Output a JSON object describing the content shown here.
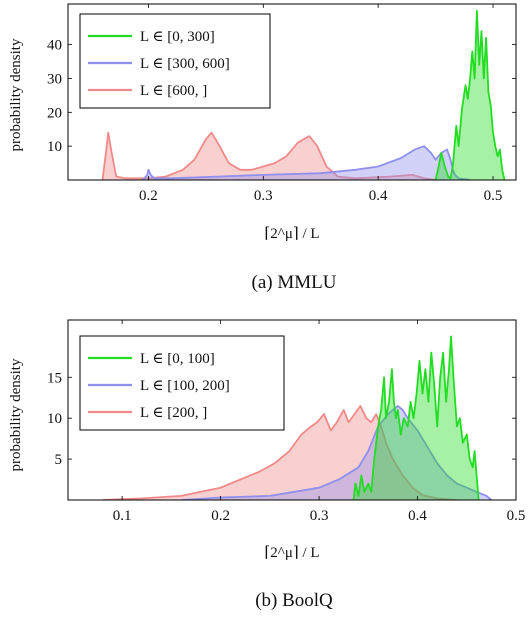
{
  "colors": {
    "green": "#22dd22",
    "blue": "#8f8fee",
    "red": "#f08a8a"
  },
  "chart_data": [
    {
      "type": "area",
      "caption": "(a) MMLU",
      "xlabel": "⌈2^μ⌉ / L",
      "ylabel": "probability density",
      "xlim": [
        0.13,
        0.52
      ],
      "ylim": [
        0,
        52
      ],
      "xticks": [
        0.2,
        0.3,
        0.4,
        0.5
      ],
      "xtick_labels": [
        "0.2",
        "0.3",
        "0.4",
        "0.5"
      ],
      "yticks": [
        10,
        20,
        30,
        40
      ],
      "ytick_labels": [
        "10",
        "20",
        "30",
        "40"
      ],
      "legend_position": "top-left",
      "series": [
        {
          "name": "L ∈ [0, 300]",
          "color": "green",
          "points": [
            [
              0.45,
              0
            ],
            [
              0.452,
              3
            ],
            [
              0.455,
              8
            ],
            [
              0.458,
              4
            ],
            [
              0.461,
              1
            ],
            [
              0.463,
              0.5
            ],
            [
              0.465,
              4
            ],
            [
              0.468,
              16
            ],
            [
              0.47,
              10
            ],
            [
              0.473,
              21
            ],
            [
              0.476,
              28
            ],
            [
              0.478,
              24
            ],
            [
              0.48,
              30
            ],
            [
              0.482,
              38
            ],
            [
              0.484,
              30
            ],
            [
              0.486,
              50
            ],
            [
              0.488,
              34
            ],
            [
              0.49,
              44
            ],
            [
              0.492,
              30
            ],
            [
              0.494,
              42
            ],
            [
              0.496,
              26
            ],
            [
              0.498,
              22
            ],
            [
              0.5,
              14
            ],
            [
              0.502,
              10
            ],
            [
              0.504,
              7
            ],
            [
              0.506,
              9
            ],
            [
              0.508,
              3
            ],
            [
              0.51,
              0
            ]
          ]
        },
        {
          "name": "L ∈ [300, 600]",
          "color": "blue",
          "points": [
            [
              0.195,
              0
            ],
            [
              0.199,
              1.5
            ],
            [
              0.2,
              3
            ],
            [
              0.202,
              1.5
            ],
            [
              0.205,
              0.5
            ],
            [
              0.22,
              0.5
            ],
            [
              0.26,
              1
            ],
            [
              0.3,
              1.5
            ],
            [
              0.35,
              2
            ],
            [
              0.38,
              3
            ],
            [
              0.4,
              4
            ],
            [
              0.42,
              6.5
            ],
            [
              0.432,
              9
            ],
            [
              0.44,
              10
            ],
            [
              0.446,
              8
            ],
            [
              0.45,
              6
            ],
            [
              0.455,
              8
            ],
            [
              0.46,
              9
            ],
            [
              0.463,
              6
            ],
            [
              0.465,
              3
            ],
            [
              0.467,
              1.5
            ],
            [
              0.47,
              0.5
            ],
            [
              0.48,
              0
            ]
          ]
        },
        {
          "name": "L ∈ [600, ]",
          "color": "red",
          "points": [
            [
              0.16,
              0
            ],
            [
              0.163,
              8
            ],
            [
              0.165,
              14
            ],
            [
              0.168,
              8
            ],
            [
              0.172,
              1
            ],
            [
              0.18,
              0.5
            ],
            [
              0.2,
              0.5
            ],
            [
              0.215,
              1
            ],
            [
              0.23,
              3
            ],
            [
              0.24,
              6
            ],
            [
              0.25,
              12
            ],
            [
              0.255,
              14
            ],
            [
              0.262,
              10
            ],
            [
              0.27,
              5
            ],
            [
              0.28,
              3
            ],
            [
              0.29,
              3
            ],
            [
              0.3,
              4
            ],
            [
              0.31,
              5
            ],
            [
              0.32,
              7
            ],
            [
              0.33,
              11
            ],
            [
              0.34,
              13
            ],
            [
              0.347,
              10
            ],
            [
              0.355,
              4
            ],
            [
              0.365,
              1
            ],
            [
              0.38,
              0.5
            ],
            [
              0.41,
              1
            ],
            [
              0.43,
              1.5
            ],
            [
              0.44,
              0.5
            ],
            [
              0.45,
              0
            ]
          ]
        }
      ]
    },
    {
      "type": "area",
      "caption": "(b) BoolQ",
      "xlabel": "⌈2^μ⌉ / L",
      "ylabel": "probability density",
      "xlim": [
        0.045,
        0.5
      ],
      "ylim": [
        0,
        22
      ],
      "xticks": [
        0.1,
        0.2,
        0.3,
        0.4,
        0.5
      ],
      "xtick_labels": [
        "0.1",
        "0.2",
        "0.3",
        "0.4",
        "0.5"
      ],
      "yticks": [
        5,
        10,
        15
      ],
      "ytick_labels": [
        "5",
        "10",
        "15"
      ],
      "legend_position": "top-left",
      "series": [
        {
          "name": "L ∈ [0, 100]",
          "color": "green",
          "points": [
            [
              0.335,
              0
            ],
            [
              0.337,
              2
            ],
            [
              0.34,
              0.5
            ],
            [
              0.343,
              3
            ],
            [
              0.346,
              1
            ],
            [
              0.35,
              2
            ],
            [
              0.353,
              1
            ],
            [
              0.356,
              5
            ],
            [
              0.36,
              9
            ],
            [
              0.363,
              11
            ],
            [
              0.366,
              15
            ],
            [
              0.368,
              10
            ],
            [
              0.371,
              12
            ],
            [
              0.374,
              16
            ],
            [
              0.376,
              12
            ],
            [
              0.378,
              10
            ],
            [
              0.38,
              11
            ],
            [
              0.383,
              8
            ],
            [
              0.386,
              10
            ],
            [
              0.39,
              9
            ],
            [
              0.393,
              12
            ],
            [
              0.396,
              10
            ],
            [
              0.399,
              13
            ],
            [
              0.402,
              17
            ],
            [
              0.405,
              13
            ],
            [
              0.408,
              16
            ],
            [
              0.411,
              12
            ],
            [
              0.414,
              18
            ],
            [
              0.417,
              14
            ],
            [
              0.42,
              9
            ],
            [
              0.423,
              15
            ],
            [
              0.426,
              18
            ],
            [
              0.429,
              12
            ],
            [
              0.432,
              16
            ],
            [
              0.434,
              20
            ],
            [
              0.437,
              14
            ],
            [
              0.44,
              9
            ],
            [
              0.443,
              10
            ],
            [
              0.446,
              7
            ],
            [
              0.45,
              8
            ],
            [
              0.453,
              5
            ],
            [
              0.456,
              4
            ],
            [
              0.458,
              6
            ],
            [
              0.46,
              3
            ],
            [
              0.462,
              0
            ]
          ]
        },
        {
          "name": "L ∈ [100, 200]",
          "color": "blue",
          "points": [
            [
              0.16,
              0
            ],
            [
              0.2,
              0.3
            ],
            [
              0.25,
              0.5
            ],
            [
              0.3,
              1.5
            ],
            [
              0.32,
              2.5
            ],
            [
              0.34,
              4
            ],
            [
              0.35,
              6
            ],
            [
              0.36,
              9
            ],
            [
              0.37,
              10.5
            ],
            [
              0.375,
              11
            ],
            [
              0.38,
              11.5
            ],
            [
              0.385,
              11
            ],
            [
              0.39,
              10
            ],
            [
              0.4,
              8.5
            ],
            [
              0.41,
              6.5
            ],
            [
              0.42,
              4.5
            ],
            [
              0.43,
              3
            ],
            [
              0.44,
              2
            ],
            [
              0.45,
              1.5
            ],
            [
              0.46,
              1
            ],
            [
              0.47,
              0.5
            ],
            [
              0.475,
              0
            ]
          ]
        },
        {
          "name": "L ∈ [200, ]",
          "color": "red",
          "points": [
            [
              0.08,
              0
            ],
            [
              0.12,
              0.2
            ],
            [
              0.16,
              0.5
            ],
            [
              0.18,
              1
            ],
            [
              0.2,
              1.5
            ],
            [
              0.22,
              2.5
            ],
            [
              0.24,
              3.5
            ],
            [
              0.255,
              4.5
            ],
            [
              0.27,
              6
            ],
            [
              0.282,
              8
            ],
            [
              0.292,
              9
            ],
            [
              0.298,
              9.5
            ],
            [
              0.305,
              10.5
            ],
            [
              0.312,
              8.5
            ],
            [
              0.318,
              9.5
            ],
            [
              0.325,
              11
            ],
            [
              0.33,
              9.5
            ],
            [
              0.336,
              10.5
            ],
            [
              0.342,
              11.5
            ],
            [
              0.348,
              10
            ],
            [
              0.353,
              9.5
            ],
            [
              0.358,
              10.5
            ],
            [
              0.363,
              9
            ],
            [
              0.368,
              7
            ],
            [
              0.375,
              5
            ],
            [
              0.385,
              3
            ],
            [
              0.395,
              1.5
            ],
            [
              0.405,
              0.6
            ],
            [
              0.42,
              0.2
            ],
            [
              0.44,
              0
            ]
          ]
        }
      ]
    }
  ]
}
